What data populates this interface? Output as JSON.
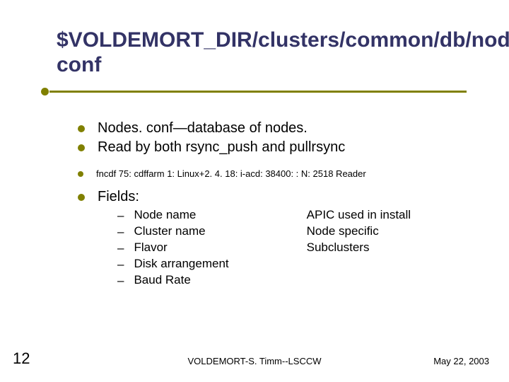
{
  "title": "$VOLDEMORT_DIR/clusters/common/db/nodes. conf",
  "bullets": {
    "b0": "Nodes. conf—database of nodes.",
    "b1": "Read by both rsync_push and pullrsync",
    "b2": "fncdf 75: cdffarm 1: Linux+2. 4. 18: i-acd: 38400: : N: 2518 Reader",
    "b3": "Fields:"
  },
  "sub": {
    "s0": "Node name",
    "s1": "Cluster name",
    "s2": "Flavor",
    "s3": "Disk arrangement",
    "s4": "Baud Rate"
  },
  "right": {
    "r0": "APIC used in install",
    "r1": "Node specific",
    "r2": "Subclusters"
  },
  "footer": {
    "page": "12",
    "center": "VOLDEMORT-S. Timm--LSCCW",
    "date": "May 22, 2003"
  },
  "colors": {
    "accent": "#808000",
    "title": "#333366",
    "text": "#000000",
    "bg": "#ffffff"
  }
}
